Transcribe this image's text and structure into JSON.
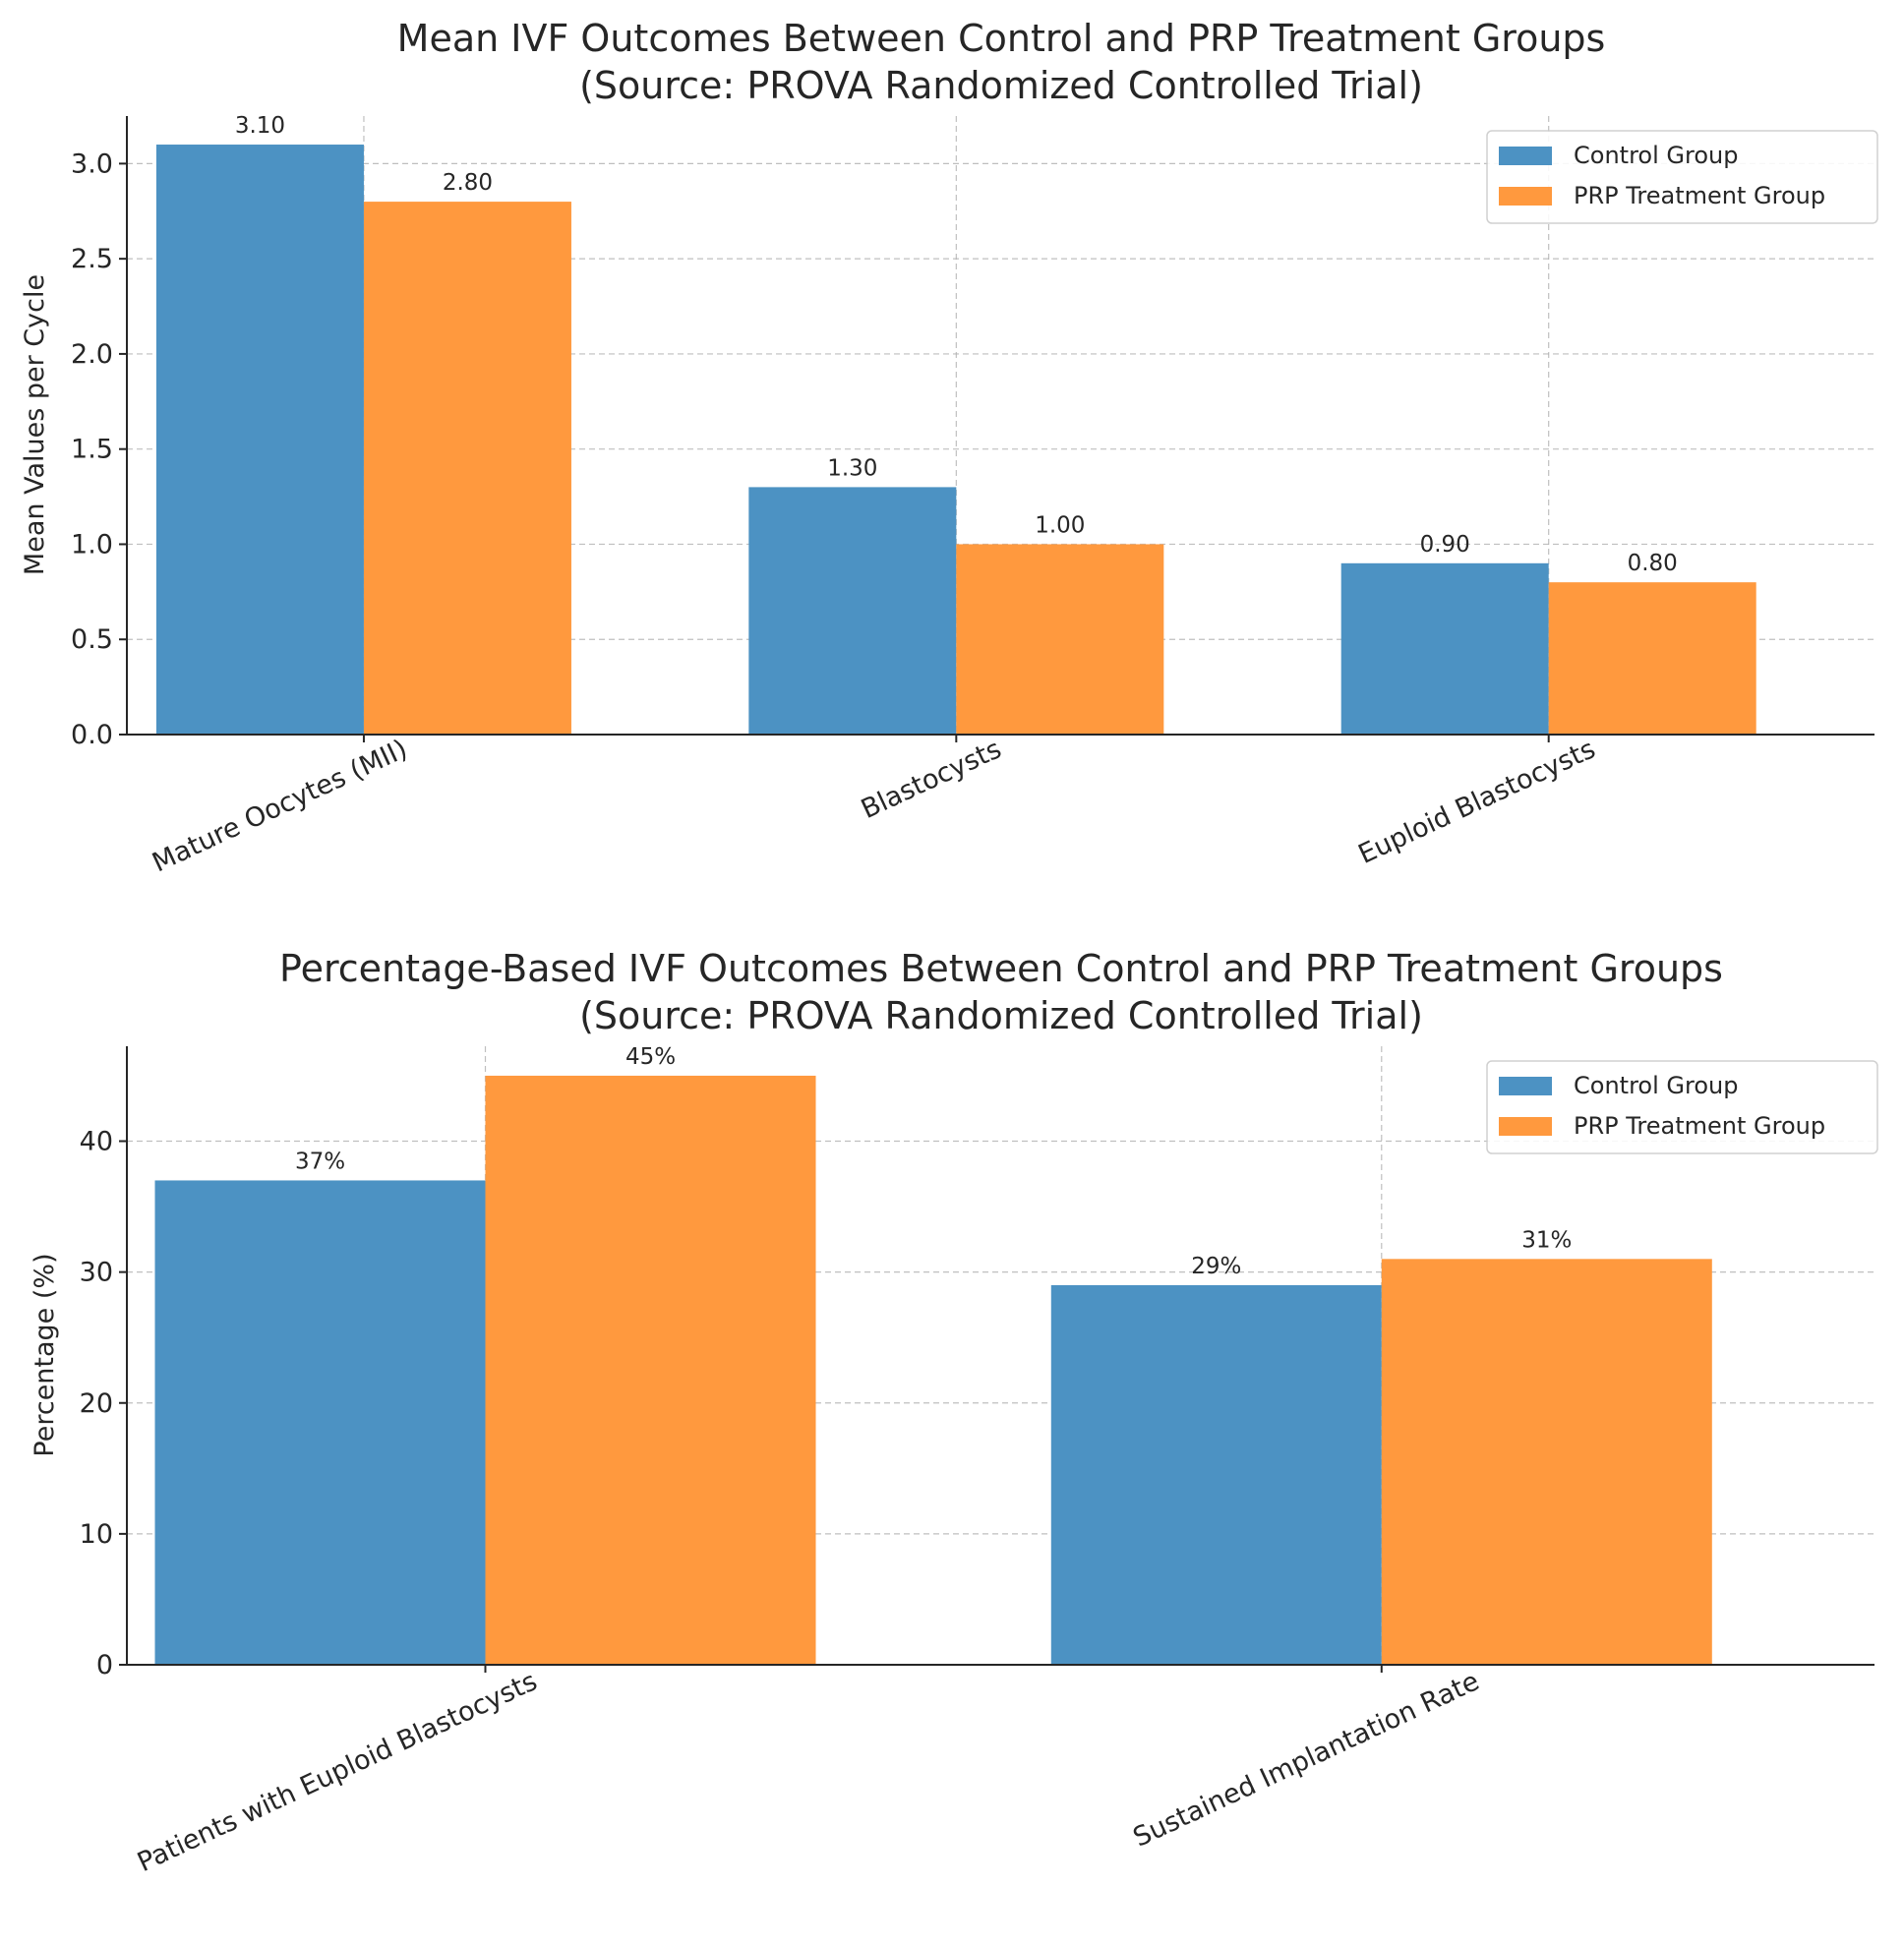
{
  "colors": {
    "control": "#4c92c3",
    "prp": "#ff993e"
  },
  "chart_data": [
    {
      "type": "bar",
      "title": "Mean IVF Outcomes Between Control and PRP Treatment Groups",
      "subtitle": "(Source: PROVA Randomized Controlled Trial)",
      "xlabel": "",
      "ylabel": "Mean Values per Cycle",
      "categories": [
        "Mature Oocytes (MII)",
        "Blastocysts",
        "Euploid Blastocysts"
      ],
      "series": [
        {
          "name": "Control Group",
          "values": [
            3.1,
            1.3,
            0.9
          ],
          "labels": [
            "3.10",
            "1.30",
            "0.90"
          ]
        },
        {
          "name": "PRP Treatment Group",
          "values": [
            2.8,
            1.0,
            0.8
          ],
          "labels": [
            "2.80",
            "1.00",
            "0.80"
          ]
        }
      ],
      "ylim": [
        0,
        3.25
      ],
      "yticks": [
        0.0,
        0.5,
        1.0,
        1.5,
        2.0,
        2.5,
        3.0
      ],
      "ytick_labels": [
        "0.0",
        "0.5",
        "1.0",
        "1.5",
        "2.0",
        "2.5",
        "3.0"
      ],
      "grid": true,
      "legend": "top-right"
    },
    {
      "type": "bar",
      "title": "Percentage-Based IVF Outcomes Between Control and PRP Treatment Groups",
      "subtitle": "(Source: PROVA Randomized Controlled Trial)",
      "xlabel": "",
      "ylabel": "Percentage (%)",
      "categories": [
        "Patients with Euploid Blastocysts",
        "Sustained Implantation Rate"
      ],
      "series": [
        {
          "name": "Control Group",
          "values": [
            37,
            29
          ],
          "labels": [
            "37%",
            "29%"
          ]
        },
        {
          "name": "PRP Treatment Group",
          "values": [
            45,
            31
          ],
          "labels": [
            "45%",
            "31%"
          ]
        }
      ],
      "ylim": [
        0,
        47.25
      ],
      "yticks": [
        0,
        10,
        20,
        30,
        40
      ],
      "ytick_labels": [
        "0",
        "10",
        "20",
        "30",
        "40"
      ],
      "grid": true,
      "legend": "top-right"
    }
  ]
}
